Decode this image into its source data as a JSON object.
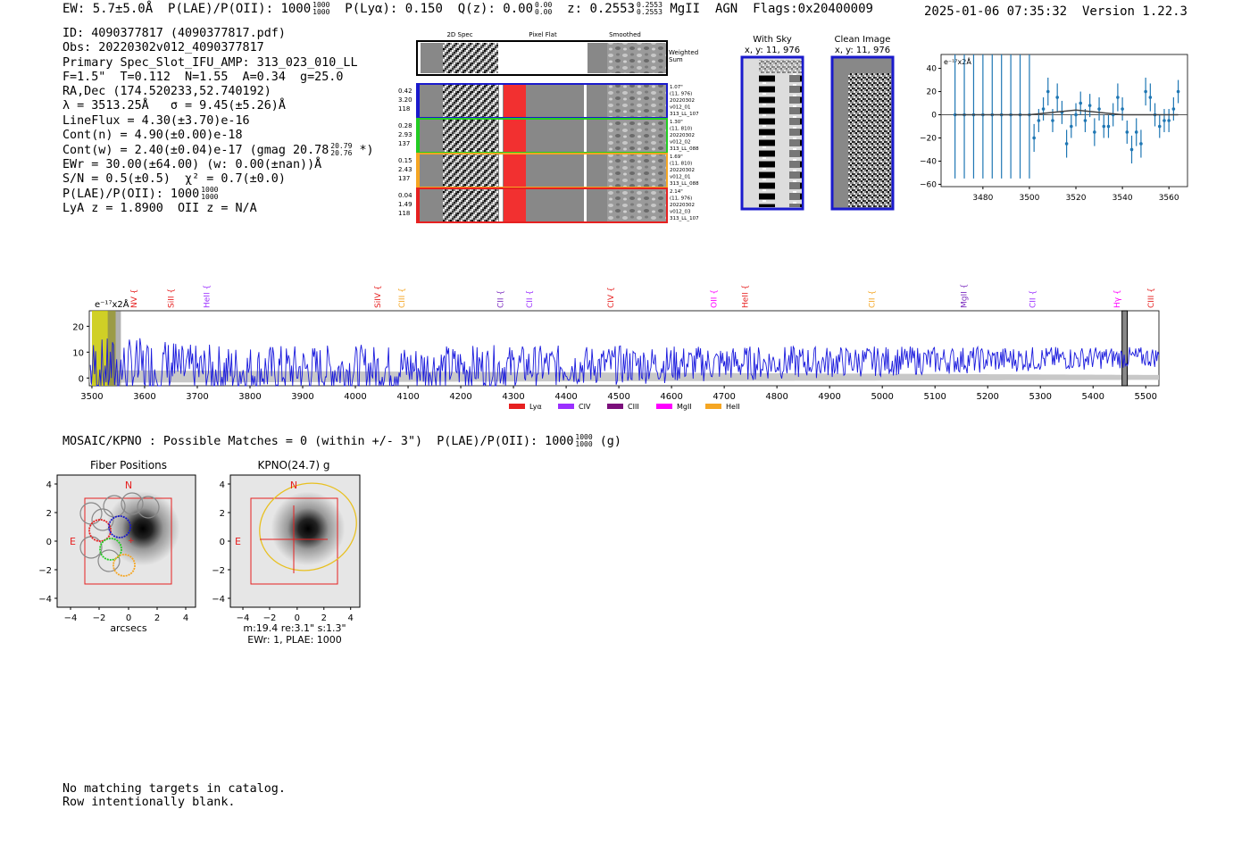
{
  "header": {
    "ew": "EW: 5.7±5.0Å",
    "plae": "P(LAE)/P(OII): 1000",
    "plae_hi": "1000",
    "plae_lo": "1000",
    "plya": "P(Lyα): 0.150",
    "qz": "Q(z): 0.00",
    "qz_hi": "0.00",
    "qz_lo": "0.00",
    "z": "z: 0.2553",
    "z_hi": "0.2553",
    "z_lo": "0.2553",
    "line": "MgII",
    "agn": "AGN",
    "flags": "Flags:0x20400009",
    "datetime": "2025-01-06 07:35:32",
    "version": "Version 1.22.3"
  },
  "info": {
    "id": "ID: 4090377817 (4090377817.pdf)",
    "obs": "Obs: 20220302v012_4090377817",
    "slot": "Primary Spec_Slot_IFU_AMP: 313_023_010_LL",
    "fwhm": "F=1.5\"  T=0.112  N=1.55  A=0.34  g=25.0",
    "radec": "RA,Dec (174.520233,52.740192)",
    "wave": "λ = 3513.25Å   σ = 9.45(±5.26)Å",
    "lineflux": "LineFlux = 4.30(±3.70)e-16",
    "contn": "Cont(n) = 4.90(±0.00)e-18",
    "contw": "Cont(w) = 2.40(±0.04)e-17 (gmag 20.78",
    "gmag_hi": "20.79",
    "gmag_lo": "20.76",
    "contw_end": "*)",
    "ewr": "EWr = 30.00(±64.00) (w: 0.00(±nan))Å",
    "sn": "S/N = 0.5(±0.5)  χ² = 0.7(±0.0)",
    "plae": "P(LAE)/P(OII): 1000",
    "plae_hi": "1000",
    "plae_lo": "1000",
    "lyaz": "LyA z = 1.8900  OII z = N/A"
  },
  "cutouts": {
    "col_2d": "2D Spec",
    "col_flat": "Pixel Flat",
    "col_smooth": "Smoothed",
    "weighted": "Weighted",
    "sum": "Sum",
    "rows": [
      {
        "w": "0.42",
        "a": "3.20",
        "n": "118",
        "d1": "1.07\"",
        "d2": "(11, 976)",
        "d3": "20220302",
        "d4": "v012_01",
        "d5": "313_LL_107",
        "color": "#1a1acc"
      },
      {
        "w": "0.28",
        "a": "2.93",
        "n": "137",
        "d1": "1.30\"",
        "d2": "(11, 810)",
        "d3": "20220302",
        "d4": "v012_02",
        "d5": "313_LL_088",
        "color": "#22cc22"
      },
      {
        "w": "0.15",
        "a": "2.43",
        "n": "137",
        "d1": "1.69\"",
        "d2": "(11, 810)",
        "d3": "20220302",
        "d4": "v012_01",
        "d5": "313_LL_088",
        "color": "#f5a623"
      },
      {
        "w": "0.04",
        "a": "1.49",
        "n": "118",
        "d1": "2.14\"",
        "d2": "(11, 976)",
        "d3": "20220302",
        "d4": "v012_03",
        "d5": "313_LL_107",
        "color": "#e62020"
      }
    ],
    "with_sky": "With Sky",
    "with_sky_xy": "x, y: 11, 976",
    "clean": "Clean Image",
    "clean_xy": "x, y: 11, 976"
  },
  "zoom_chart": {
    "units": "e⁻¹⁷x2Å",
    "type": "scatter",
    "x": [
      3468,
      3472,
      3476,
      3480,
      3484,
      3488,
      3492,
      3496,
      3500,
      3502,
      3504,
      3506,
      3508,
      3510,
      3512,
      3514,
      3516,
      3518,
      3520,
      3522,
      3524,
      3526,
      3528,
      3530,
      3532,
      3534,
      3536,
      3538,
      3540,
      3542,
      3544,
      3546,
      3548,
      3550,
      3552,
      3554,
      3556,
      3558,
      3560,
      3562,
      3564
    ],
    "y": [
      0,
      0,
      0,
      0,
      0,
      0,
      0,
      0,
      0,
      -20,
      -5,
      5,
      20,
      -5,
      15,
      2,
      -25,
      -10,
      0,
      10,
      -5,
      8,
      -15,
      5,
      -10,
      -10,
      0,
      15,
      5,
      -15,
      -30,
      -15,
      -25,
      20,
      15,
      0,
      -10,
      -5,
      -5,
      5,
      20
    ],
    "err": [
      55,
      55,
      55,
      55,
      55,
      55,
      55,
      55,
      55,
      12,
      10,
      10,
      12,
      10,
      12,
      10,
      12,
      10,
      10,
      10,
      10,
      10,
      12,
      10,
      10,
      10,
      10,
      12,
      10,
      10,
      12,
      12,
      12,
      12,
      12,
      10,
      10,
      10,
      10,
      10,
      10
    ],
    "model_x": [
      3468,
      3490,
      3500,
      3510,
      3520,
      3530,
      3540,
      3550,
      3564
    ],
    "model_y": [
      0,
      0,
      0,
      2,
      4,
      2,
      0,
      0,
      0
    ],
    "xlim": [
      3462,
      3568
    ],
    "ylim": [
      -62,
      52
    ],
    "xticks": [
      3480,
      3500,
      3520,
      3540,
      3560
    ],
    "yticks": [
      40,
      20,
      0,
      -20,
      -40,
      -60
    ]
  },
  "full_spectrum": {
    "units": "e⁻¹⁷x2Å",
    "xlim": [
      3495,
      5525
    ],
    "ylim": [
      -3,
      26
    ],
    "xticks": [
      3500,
      3600,
      3700,
      3800,
      3900,
      4000,
      4100,
      4200,
      4300,
      4400,
      4500,
      4600,
      4700,
      4800,
      4900,
      5000,
      5100,
      5200,
      5300,
      5400,
      5500
    ],
    "yticks": [
      20,
      10,
      0
    ],
    "highlight_range": [
      3500,
      3545
    ],
    "highlight2_range": [
      3530,
      3555
    ],
    "marker_range": [
      5455,
      5465
    ],
    "lines": [
      {
        "name": "NV",
        "wave": 3580,
        "color": "#e62020"
      },
      {
        "name": "SiII",
        "wave": 3650,
        "color": "#e62020"
      },
      {
        "name": "HeII",
        "wave": 3718,
        "color": "#9b30ff"
      },
      {
        "name": "SiIV",
        "wave": 4042,
        "color": "#e62020"
      },
      {
        "name": "CIII",
        "wave": 4088,
        "color": "#f5a623"
      },
      {
        "name": "CII",
        "wave": 4275,
        "color": "#7b2cbf"
      },
      {
        "name": "CII",
        "wave": 4330,
        "color": "#9b30ff"
      },
      {
        "name": "CIV",
        "wave": 4485,
        "color": "#e62020"
      },
      {
        "name": "OII",
        "wave": 4680,
        "color": "#ff00ff"
      },
      {
        "name": "HeII",
        "wave": 4740,
        "color": "#e62020"
      },
      {
        "name": "CII",
        "wave": 4980,
        "color": "#f5a623"
      },
      {
        "name": "MgII",
        "wave": 5155,
        "color": "#7b2cbf"
      },
      {
        "name": "CII",
        "wave": 5285,
        "color": "#9b30ff"
      },
      {
        "name": "Hγ",
        "wave": 5445,
        "color": "#ff00ff"
      },
      {
        "name": "CIII",
        "wave": 5510,
        "color": "#e62020"
      }
    ],
    "legend": [
      {
        "name": "Lyα",
        "color": "#e62020"
      },
      {
        "name": "CIV",
        "color": "#9b30ff"
      },
      {
        "name": "CIII",
        "color": "#7b0f7b"
      },
      {
        "name": "MgII",
        "color": "#ff00ff"
      },
      {
        "name": "HeII",
        "color": "#f5a623"
      }
    ]
  },
  "mosaic": {
    "title_a": "MOSAIC/KPNO : Possible Matches = 0 (within +/- 3\")  P(LAE)/P(OII): 1000",
    "hi": "1000",
    "lo": "1000",
    "band": "(g)",
    "panel1_title": "Fiber Positions",
    "panel1_xlabel": "arcsecs",
    "panel2_title": "KPNO(24.7) g",
    "panel2_caption1": "m:19.4  re:3.1\"  s:1.3\"",
    "panel2_caption2": "EWr: 1, PLAE: 1000",
    "north": "N",
    "east": "E",
    "ticks": [
      "4",
      "2",
      "0",
      "−2",
      "−4"
    ],
    "xticks": [
      "−4",
      "−2",
      "0",
      "2",
      "4"
    ]
  },
  "bottom": {
    "line1": "No matching targets in catalog.",
    "line2": "Row intentionally blank."
  }
}
